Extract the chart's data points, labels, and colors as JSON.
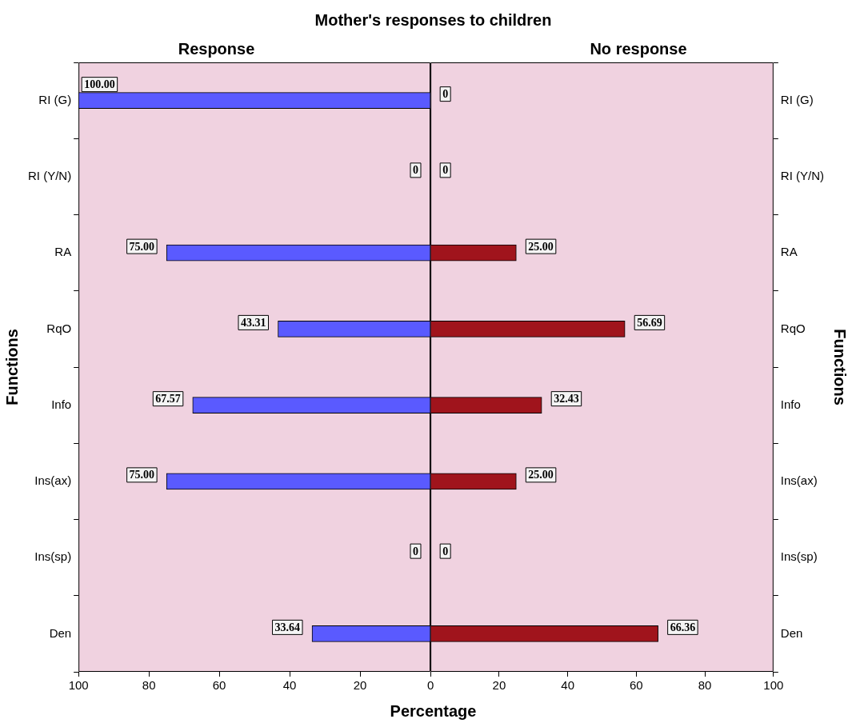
{
  "chart_data": [
    {
      "type": "bar",
      "orientation": "horizontal",
      "title": "Mother's responses to children",
      "subtitle": "Response",
      "ylabel": "Functions",
      "xlabel": "Percentage",
      "categories": [
        "RI (G)",
        "RI (Y/N)",
        "RA",
        "RqO",
        "Info",
        "Ins(ax)",
        "Ins(sp)",
        "Den"
      ],
      "values": [
        100,
        0,
        75,
        43.31,
        67.57,
        75,
        0,
        33.64
      ],
      "value_labels": [
        "100.00",
        "0",
        "75.00",
        "43.31",
        "67.57",
        "75.00",
        "0",
        "33.64"
      ],
      "color": "#5a5aff",
      "xlim": [
        100,
        0
      ],
      "xticks": [
        100,
        80,
        60,
        40,
        20,
        {
          "value": 0,
          "label": null
        }
      ]
    },
    {
      "type": "bar",
      "orientation": "horizontal",
      "subtitle": "No response",
      "ylabel": "Functions",
      "categories": [
        "RI (G)",
        "RI (Y/N)",
        "RA",
        "RqO",
        "Info",
        "Ins(ax)",
        "Ins(sp)",
        "Den"
      ],
      "values": [
        0,
        0,
        25,
        56.69,
        32.43,
        25,
        0,
        66.36
      ],
      "value_labels": [
        "0",
        "0",
        "25.00",
        "56.69",
        "32.43",
        "25.00",
        "0",
        "66.36"
      ],
      "color": "#a0141c",
      "xlim": [
        0,
        100
      ],
      "xticks": [
        0,
        20,
        40,
        60,
        80,
        100
      ]
    }
  ]
}
